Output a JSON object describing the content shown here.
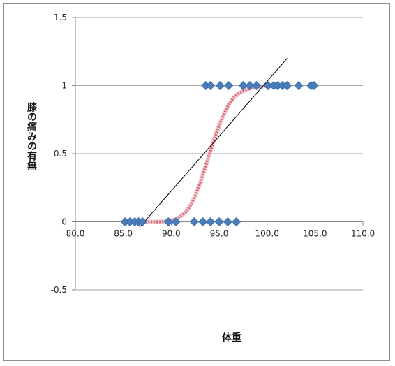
{
  "chart_data": {
    "type": "scatter",
    "title": "",
    "xlabel": "体重",
    "ylabel": "膝の痛みの有無",
    "xlim": [
      80,
      110
    ],
    "ylim": [
      -0.5,
      1.5
    ],
    "x_ticks": [
      80,
      85,
      90,
      95,
      100,
      105,
      110
    ],
    "x_tick_labels": [
      "80.0",
      "85.0",
      "90.0",
      "95.0",
      "100.0",
      "105.0",
      "110.0"
    ],
    "y_ticks": [
      -0.5,
      0,
      0.5,
      1,
      1.5
    ],
    "y_tick_labels": [
      "-0.5",
      "0",
      "0.5",
      "1",
      "1.5"
    ],
    "grid": "horizontal",
    "x_axis_crosses_y": 0,
    "series": [
      {
        "type": "scatter",
        "marker": "diamond",
        "color": "#4a7ebb",
        "points": [
          {
            "x": 85.2,
            "y": 0
          },
          {
            "x": 85.7,
            "y": 0
          },
          {
            "x": 86.2,
            "y": 0
          },
          {
            "x": 86.6,
            "y": 0
          },
          {
            "x": 87.0,
            "y": 0
          },
          {
            "x": 89.7,
            "y": 0
          },
          {
            "x": 90.5,
            "y": 0
          },
          {
            "x": 92.4,
            "y": 0
          },
          {
            "x": 93.3,
            "y": 0
          },
          {
            "x": 94.1,
            "y": 0
          },
          {
            "x": 95.0,
            "y": 0
          },
          {
            "x": 95.9,
            "y": 0
          },
          {
            "x": 96.8,
            "y": 0
          },
          {
            "x": 93.6,
            "y": 1
          },
          {
            "x": 94.1,
            "y": 1
          },
          {
            "x": 95.1,
            "y": 1
          },
          {
            "x": 96.0,
            "y": 1
          },
          {
            "x": 97.5,
            "y": 1
          },
          {
            "x": 98.2,
            "y": 1
          },
          {
            "x": 98.9,
            "y": 1
          },
          {
            "x": 100.1,
            "y": 1
          },
          {
            "x": 100.7,
            "y": 1
          },
          {
            "x": 101.1,
            "y": 1
          },
          {
            "x": 101.6,
            "y": 1
          },
          {
            "x": 102.1,
            "y": 1
          },
          {
            "x": 103.3,
            "y": 1
          },
          {
            "x": 104.6,
            "y": 1
          },
          {
            "x": 104.9,
            "y": 1
          }
        ]
      },
      {
        "type": "line",
        "style": "logistic-curve",
        "color": "#d96a7a",
        "x": [
          87,
          88,
          89,
          90,
          90.5,
          91,
          91.5,
          92,
          92.5,
          93,
          93.5,
          94,
          94.5,
          95,
          95.5,
          96,
          96.5,
          97,
          97.5,
          98,
          98.5,
          99,
          99.5,
          100,
          101,
          102
        ],
        "y": [
          0,
          0,
          0,
          0.01,
          0.02,
          0.04,
          0.07,
          0.12,
          0.19,
          0.28,
          0.39,
          0.5,
          0.61,
          0.71,
          0.79,
          0.86,
          0.91,
          0.94,
          0.96,
          0.975,
          0.985,
          0.99,
          0.995,
          1.0,
          1.0,
          1.0
        ]
      },
      {
        "type": "line",
        "style": "linear-fit",
        "color": "#000000",
        "x": [
          86.7,
          102.1
        ],
        "y": [
          -0.04,
          1.2
        ]
      }
    ]
  }
}
